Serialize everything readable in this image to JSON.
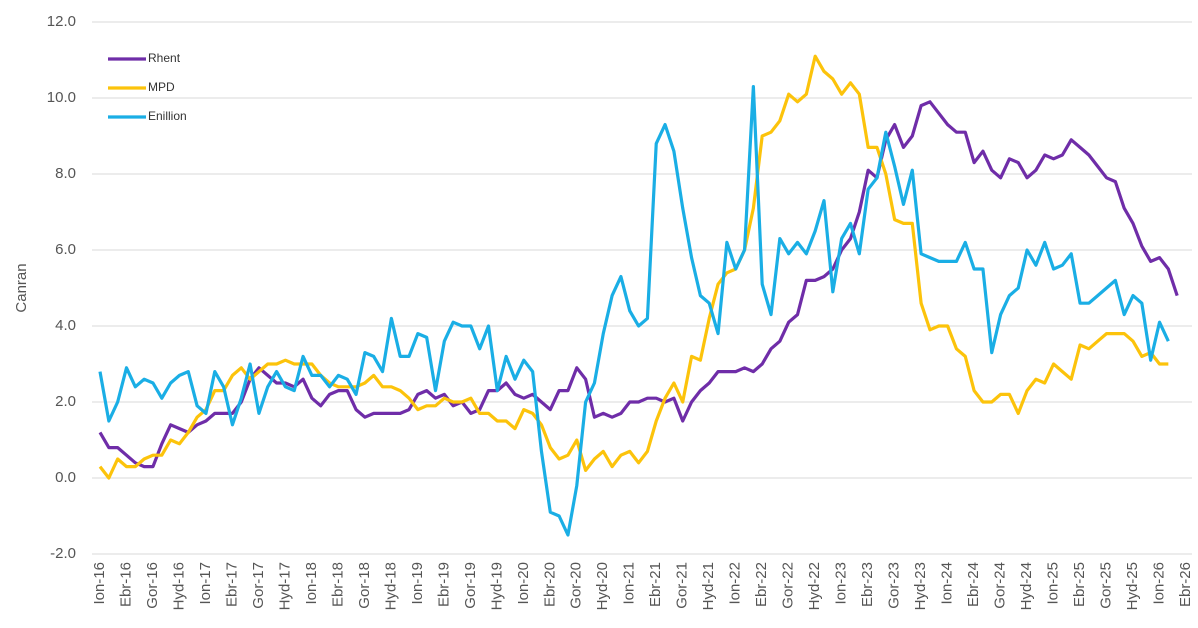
{
  "chart_data": {
    "type": "line",
    "ylabel": "Canran",
    "categories": [
      "Ion-16",
      null,
      null,
      "Ebr-16",
      null,
      null,
      "Gor-16",
      null,
      null,
      "Hyd-16",
      null,
      null,
      "Ion-17",
      null,
      null,
      "Ebr-17",
      null,
      null,
      "Gor-17",
      null,
      null,
      "Hyd-17",
      null,
      null,
      "Ion-18",
      null,
      null,
      "Ebr-18",
      null,
      null,
      "Gor-18",
      null,
      null,
      "Hyd-18",
      null,
      null,
      "Ion-19",
      null,
      null,
      "Ebr-19",
      null,
      null,
      "Gor-19",
      null,
      null,
      "Hyd-19",
      null,
      null,
      "Ion-20",
      null,
      null,
      "Ebr-20",
      null,
      null,
      "Gor-20",
      null,
      null,
      "Hyd-20",
      null,
      null,
      "Ion-21",
      null,
      null,
      "Ebr-21",
      null,
      null,
      "Gor-21",
      null,
      null,
      "Hyd-21",
      null,
      null,
      "Ion-22",
      null,
      null,
      "Ebr-22",
      null,
      null,
      "Gor-22",
      null,
      null,
      "Hyd-22",
      null,
      null,
      "Ion-23",
      null,
      null,
      "Ebr-23",
      null,
      null,
      "Gor-23",
      null,
      null,
      "Hyd-23",
      null,
      null,
      "Ion-24",
      null,
      null,
      "Ebr-24",
      null,
      null,
      "Gor-24",
      null,
      null,
      "Hyd-24",
      null,
      null,
      "Ion-25",
      null,
      null,
      "Ebr-25",
      null,
      null,
      "Gor-25",
      null,
      null,
      "Hyd-25",
      null,
      null,
      "Ion-26",
      null,
      null,
      "Ebr-26"
    ],
    "series": [
      {
        "name": "Rhent",
        "color": "#6f2da8",
        "values": [
          1.2,
          0.8,
          0.8,
          0.6,
          0.4,
          0.3,
          0.3,
          0.9,
          1.4,
          1.3,
          1.2,
          1.4,
          1.5,
          1.7,
          1.7,
          1.7,
          2.0,
          2.6,
          2.9,
          2.7,
          2.5,
          2.5,
          2.4,
          2.6,
          2.1,
          1.9,
          2.2,
          2.3,
          2.3,
          1.8,
          1.6,
          1.7,
          1.7,
          1.7,
          1.7,
          1.8,
          2.2,
          2.3,
          2.1,
          2.2,
          1.9,
          2.0,
          1.7,
          1.8,
          2.3,
          2.3,
          2.5,
          2.2,
          2.1,
          2.2,
          2.0,
          1.8,
          2.3,
          2.3,
          2.9,
          2.6,
          1.6,
          1.7,
          1.6,
          1.7,
          2.0,
          2.0,
          2.1,
          2.1,
          2.0,
          2.1,
          1.5,
          2.0,
          2.3,
          2.5,
          2.8,
          2.8,
          2.8,
          2.9,
          2.8,
          3.0,
          3.4,
          3.6,
          4.1,
          4.3,
          5.2,
          5.2,
          5.3,
          5.5,
          6.0,
          6.3,
          7.0,
          8.1,
          7.9,
          8.9,
          9.3,
          8.7,
          9.0,
          9.8,
          9.9,
          9.6,
          9.3,
          9.1,
          9.1,
          8.3,
          8.6,
          8.1,
          7.9,
          8.4,
          8.3,
          7.9,
          8.1,
          8.5,
          8.4,
          8.5,
          8.9,
          8.7,
          8.5,
          8.2,
          7.9,
          7.8,
          7.1,
          6.7,
          6.1,
          5.7,
          5.8,
          5.5,
          4.8,
          null
        ]
      },
      {
        "name": "MPD",
        "color": "#fcc30b",
        "values": [
          0.3,
          0.0,
          0.5,
          0.3,
          0.3,
          0.5,
          0.6,
          0.6,
          1.0,
          0.9,
          1.2,
          1.6,
          1.8,
          2.3,
          2.3,
          2.7,
          2.9,
          2.6,
          2.8,
          3.0,
          3.0,
          3.1,
          3.0,
          3.0,
          3.0,
          2.7,
          2.5,
          2.4,
          2.4,
          2.4,
          2.5,
          2.7,
          2.4,
          2.4,
          2.3,
          2.1,
          1.8,
          1.9,
          1.9,
          2.1,
          2.0,
          2.0,
          2.1,
          1.7,
          1.7,
          1.5,
          1.5,
          1.3,
          1.8,
          1.7,
          1.4,
          0.8,
          0.5,
          0.6,
          1.0,
          0.2,
          0.5,
          0.7,
          0.3,
          0.6,
          0.7,
          0.4,
          0.7,
          1.5,
          2.1,
          2.5,
          2.0,
          3.2,
          3.1,
          4.2,
          5.1,
          5.4,
          5.5,
          6.0,
          7.1,
          9.0,
          9.1,
          9.4,
          10.1,
          9.9,
          10.1,
          11.1,
          10.7,
          10.5,
          10.1,
          10.4,
          10.1,
          8.7,
          8.7,
          8.0,
          6.8,
          6.7,
          6.7,
          4.6,
          3.9,
          4.0,
          4.0,
          3.4,
          3.2,
          2.3,
          2.0,
          2.0,
          2.2,
          2.2,
          1.7,
          2.3,
          2.6,
          2.5,
          3.0,
          2.8,
          2.6,
          3.5,
          3.4,
          3.6,
          3.8,
          3.8,
          3.8,
          3.6,
          3.2,
          3.3,
          3.0,
          3.0,
          null,
          null
        ]
      },
      {
        "name": "Enillion",
        "color": "#1aaee5",
        "values": [
          2.8,
          1.5,
          2.0,
          2.9,
          2.4,
          2.6,
          2.5,
          2.1,
          2.5,
          2.7,
          2.8,
          1.9,
          1.7,
          2.8,
          2.4,
          1.4,
          2.1,
          3.0,
          1.7,
          2.4,
          2.8,
          2.4,
          2.3,
          3.2,
          2.7,
          2.7,
          2.4,
          2.7,
          2.6,
          2.2,
          3.3,
          3.2,
          2.8,
          4.2,
          3.2,
          3.2,
          3.8,
          3.7,
          2.3,
          3.6,
          4.1,
          4.0,
          4.0,
          3.4,
          4.0,
          2.3,
          3.2,
          2.6,
          3.1,
          2.8,
          0.7,
          -0.9,
          -1.0,
          -1.5,
          -0.2,
          2.0,
          2.5,
          3.8,
          4.8,
          5.3,
          4.4,
          4.0,
          4.2,
          8.8,
          9.3,
          8.6,
          7.1,
          5.8,
          4.8,
          4.6,
          3.8,
          6.2,
          5.5,
          6.0,
          10.3,
          5.1,
          4.3,
          6.3,
          5.9,
          6.2,
          5.9,
          6.5,
          7.3,
          4.9,
          6.3,
          6.7,
          5.9,
          7.6,
          7.9,
          9.1,
          8.2,
          7.2,
          8.1,
          5.9,
          5.8,
          5.7,
          5.7,
          5.7,
          6.2,
          5.5,
          5.5,
          3.3,
          4.3,
          4.8,
          5.0,
          6.0,
          5.6,
          6.2,
          5.5,
          5.6,
          5.9,
          4.6,
          4.6,
          4.8,
          5.0,
          5.2,
          4.3,
          4.8,
          4.6,
          3.1,
          4.1,
          3.6,
          null,
          null
        ]
      }
    ],
    "ylim": [
      -2,
      12
    ],
    "yticks": [
      {
        "value": -2,
        "label": "-2.0"
      },
      {
        "value": 0,
        "label": "0.0"
      },
      {
        "value": 2,
        "label": "2.0"
      },
      {
        "value": 4,
        "label": "4.0"
      },
      {
        "value": 6,
        "label": "6.0"
      },
      {
        "value": 8,
        "label": "8.0"
      },
      {
        "value": 10,
        "label": "10.0"
      },
      {
        "value": 12,
        "label": "12.0"
      }
    ],
    "grid": true,
    "legend": "upper left"
  }
}
